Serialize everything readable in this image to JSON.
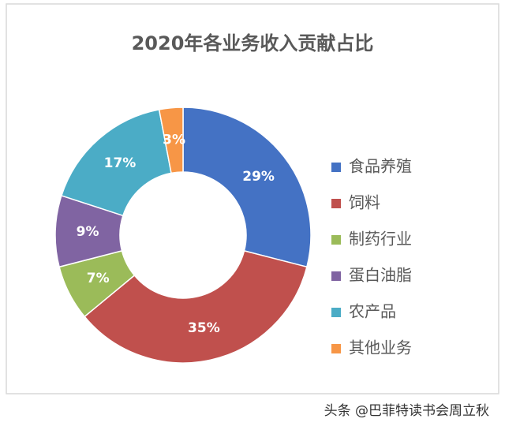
{
  "chart_data": {
    "type": "donut",
    "title": "2020年各业务收入贡献占比",
    "categories": [
      "食品养殖",
      "饲料",
      "制药行业",
      "蛋白油脂",
      "农产品",
      "其他业务"
    ],
    "values": [
      29,
      35,
      7,
      9,
      17,
      3
    ],
    "value_labels": [
      "29%",
      "35%",
      "7%",
      "9%",
      "17%",
      "3%"
    ],
    "colors": [
      "#4472c4",
      "#c0504d",
      "#9bbb59",
      "#8064a2",
      "#4bacc6",
      "#f79646"
    ],
    "legend": "right"
  },
  "watermark": "头条 @巴菲特读书会周立秋"
}
